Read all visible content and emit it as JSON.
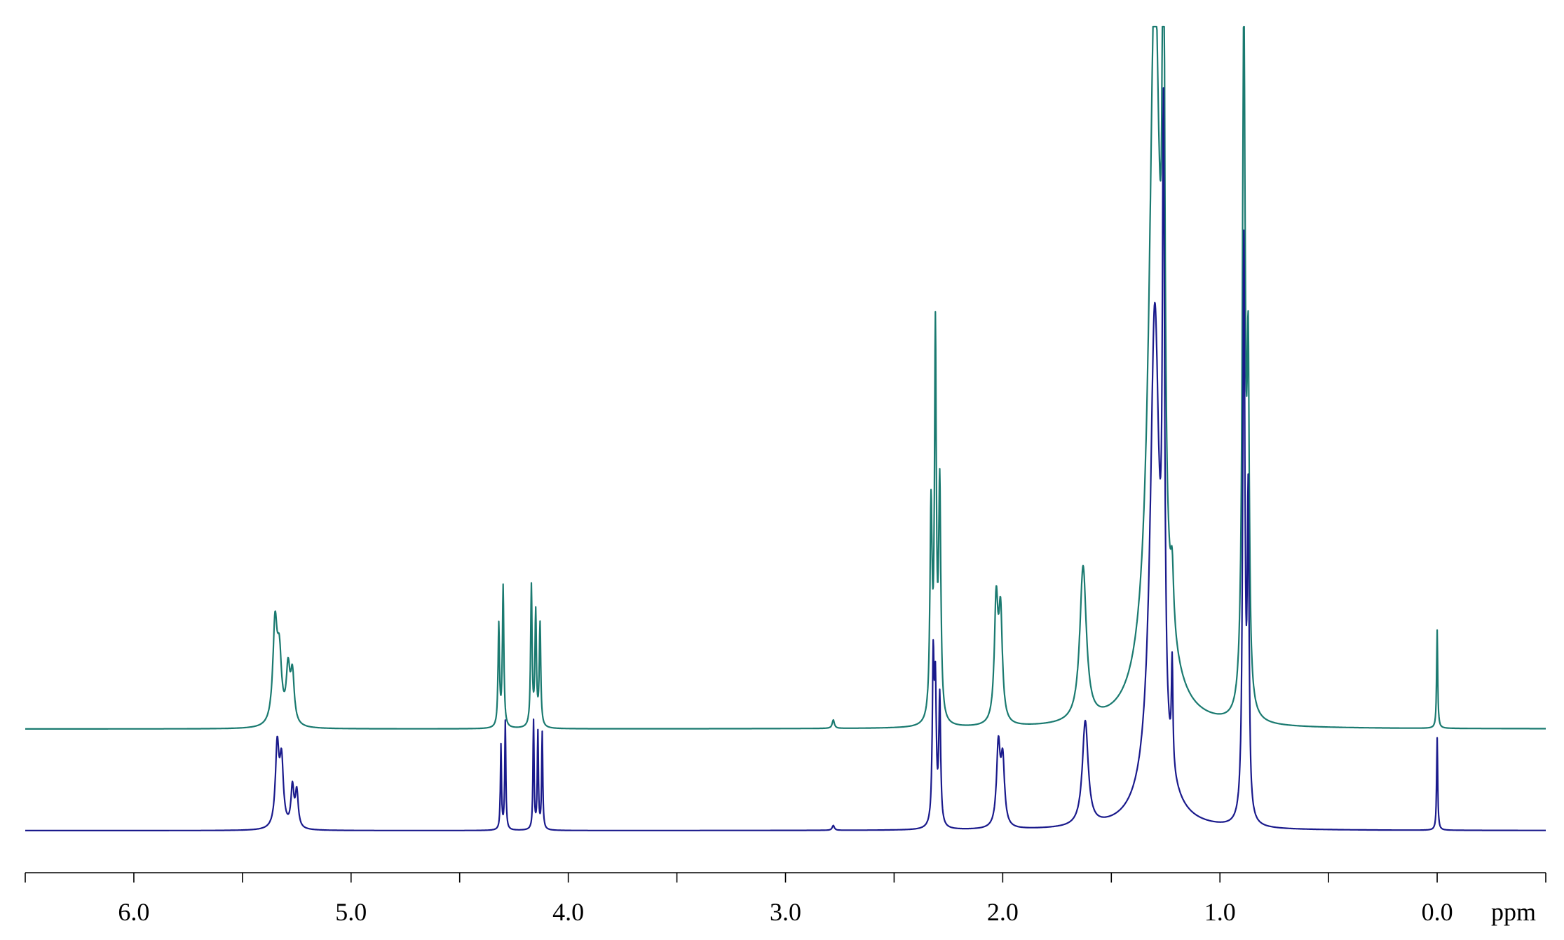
{
  "chart_data": {
    "type": "line",
    "title": "",
    "xlabel": "",
    "ylabel": "",
    "x_unit": "ppm",
    "x_reversed": true,
    "xlim": [
      6.5,
      -0.5
    ],
    "x_ticks": [
      {
        "value": 6.0,
        "label": "6.0"
      },
      {
        "value": 5.0,
        "label": "5.0"
      },
      {
        "value": 4.0,
        "label": "4.0"
      },
      {
        "value": 3.0,
        "label": "3.0"
      },
      {
        "value": 2.0,
        "label": "2.0"
      },
      {
        "value": 1.0,
        "label": "1.0"
      },
      {
        "value": 0.0,
        "label": "0.0"
      }
    ],
    "x_minor_step": 0.5,
    "grid": false,
    "legend": "none",
    "series": [
      {
        "color": "#1a7a70",
        "ylim": [
          0,
          1.0
        ],
        "peaks": [
          {
            "ppm": 5.35,
            "height": 0.14,
            "width": 0.012
          },
          {
            "ppm": 5.33,
            "height": 0.09,
            "width": 0.012
          },
          {
            "ppm": 5.29,
            "height": 0.075,
            "width": 0.01
          },
          {
            "ppm": 5.27,
            "height": 0.07,
            "width": 0.01
          },
          {
            "ppm": 4.32,
            "height": 0.145,
            "width": 0.004
          },
          {
            "ppm": 4.3,
            "height": 0.2,
            "width": 0.004
          },
          {
            "ppm": 4.17,
            "height": 0.2,
            "width": 0.004
          },
          {
            "ppm": 4.15,
            "height": 0.16,
            "width": 0.004
          },
          {
            "ppm": 4.13,
            "height": 0.145,
            "width": 0.004
          },
          {
            "ppm": 2.78,
            "height": 0.012,
            "width": 0.006
          },
          {
            "ppm": 2.33,
            "height": 0.3,
            "width": 0.006
          },
          {
            "ppm": 2.31,
            "height": 0.54,
            "width": 0.005
          },
          {
            "ppm": 2.29,
            "height": 0.33,
            "width": 0.006
          },
          {
            "ppm": 2.03,
            "height": 0.17,
            "width": 0.01
          },
          {
            "ppm": 2.01,
            "height": 0.15,
            "width": 0.01
          },
          {
            "ppm": 1.63,
            "height": 0.22,
            "width": 0.018
          },
          {
            "ppm": 1.3,
            "height": 1.0,
            "width": 0.03
          },
          {
            "ppm": 1.26,
            "height": 1.0,
            "width": 0.006
          },
          {
            "ppm": 1.22,
            "height": 0.08,
            "width": 0.008
          },
          {
            "ppm": 0.89,
            "height": 1.0,
            "width": 0.008
          },
          {
            "ppm": 0.87,
            "height": 0.45,
            "width": 0.006
          },
          {
            "ppm": 0.0,
            "height": 0.14,
            "width": 0.003
          }
        ]
      },
      {
        "color": "#1a1a8c",
        "ylim": [
          0,
          1.0
        ],
        "peaks": [
          {
            "ppm": 5.34,
            "height": 0.1,
            "width": 0.01
          },
          {
            "ppm": 5.32,
            "height": 0.08,
            "width": 0.01
          },
          {
            "ppm": 5.27,
            "height": 0.05,
            "width": 0.008
          },
          {
            "ppm": 5.25,
            "height": 0.045,
            "width": 0.008
          },
          {
            "ppm": 4.31,
            "height": 0.105,
            "width": 0.003
          },
          {
            "ppm": 4.29,
            "height": 0.135,
            "width": 0.003
          },
          {
            "ppm": 4.16,
            "height": 0.135,
            "width": 0.003
          },
          {
            "ppm": 4.14,
            "height": 0.12,
            "width": 0.003
          },
          {
            "ppm": 4.12,
            "height": 0.12,
            "width": 0.003
          },
          {
            "ppm": 2.78,
            "height": 0.006,
            "width": 0.006
          },
          {
            "ppm": 2.32,
            "height": 0.2,
            "width": 0.005
          },
          {
            "ppm": 2.31,
            "height": 0.16,
            "width": 0.005
          },
          {
            "ppm": 2.29,
            "height": 0.16,
            "width": 0.005
          },
          {
            "ppm": 2.02,
            "height": 0.1,
            "width": 0.01
          },
          {
            "ppm": 2.0,
            "height": 0.08,
            "width": 0.01
          },
          {
            "ppm": 1.62,
            "height": 0.13,
            "width": 0.016
          },
          {
            "ppm": 1.3,
            "height": 0.6,
            "width": 0.025
          },
          {
            "ppm": 1.26,
            "height": 0.72,
            "width": 0.006
          },
          {
            "ppm": 1.22,
            "height": 0.13,
            "width": 0.004
          },
          {
            "ppm": 0.89,
            "height": 0.72,
            "width": 0.006
          },
          {
            "ppm": 0.87,
            "height": 0.38,
            "width": 0.005
          },
          {
            "ppm": 0.0,
            "height": 0.115,
            "width": 0.003
          }
        ]
      }
    ]
  }
}
